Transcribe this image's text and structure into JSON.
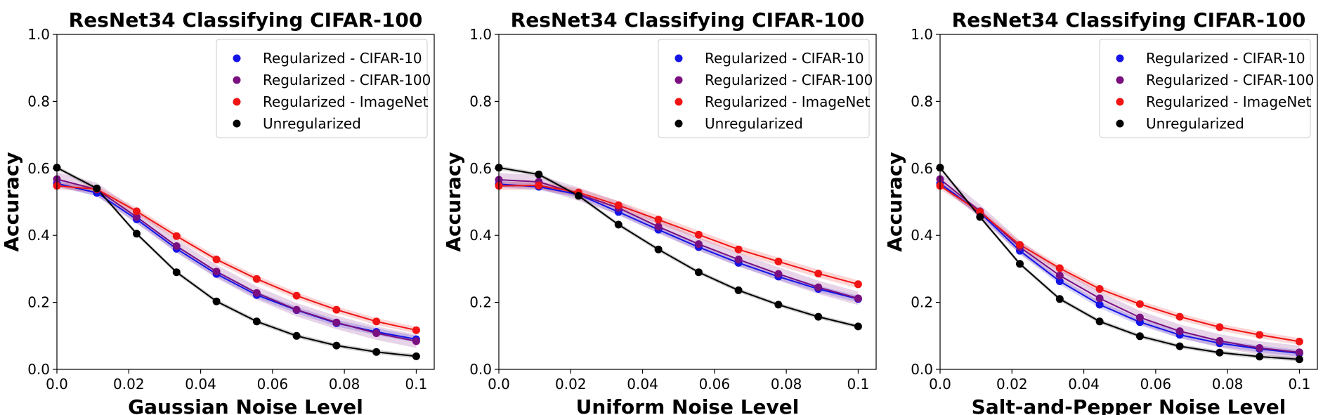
{
  "chart_data": [
    {
      "type": "line",
      "title": "ResNet34 Classifying CIFAR-100",
      "xlabel": "Gaussian Noise Level",
      "ylabel": "Accuracy",
      "xlim": [
        0,
        0.105
      ],
      "ylim": [
        0,
        1.0
      ],
      "xticks": [
        0.0,
        0.02,
        0.04,
        0.06,
        0.08,
        0.1
      ],
      "xtick_labels": [
        "0.0",
        "0.02",
        "0.04",
        "0.06",
        "0.08",
        "0.1"
      ],
      "yticks": [
        0.0,
        0.2,
        0.4,
        0.6,
        0.8,
        1.0
      ],
      "ytick_labels": [
        "0.0",
        "0.2",
        "0.4",
        "0.6",
        "0.8",
        "1.0"
      ],
      "legend_position": "top-right",
      "x": [
        0.0,
        0.0111,
        0.0222,
        0.0333,
        0.0444,
        0.0556,
        0.0667,
        0.0778,
        0.0889,
        0.1
      ],
      "series": [
        {
          "name": "Regularized - CIFAR-10",
          "color": "#1414e6",
          "values": [
            0.555,
            0.527,
            0.448,
            0.36,
            0.285,
            0.222,
            0.177,
            0.138,
            0.112,
            0.09
          ],
          "band": 0.01
        },
        {
          "name": "Regularized - CIFAR-100",
          "color": "#7a1080",
          "values": [
            0.568,
            0.537,
            0.455,
            0.368,
            0.292,
            0.228,
            0.178,
            0.14,
            0.108,
            0.084
          ],
          "band": 0.02
        },
        {
          "name": "Regularized - ImageNet",
          "color": "#f01414",
          "values": [
            0.548,
            0.538,
            0.472,
            0.398,
            0.328,
            0.27,
            0.22,
            0.178,
            0.143,
            0.117
          ],
          "band": 0.01
        },
        {
          "name": "Unregularized",
          "color": "#000000",
          "values": [
            0.602,
            0.54,
            0.405,
            0.29,
            0.203,
            0.143,
            0.1,
            0.071,
            0.052,
            0.039
          ],
          "band": 0.006
        }
      ]
    },
    {
      "type": "line",
      "title": "ResNet34 Classifying CIFAR-100",
      "xlabel": "Uniform Noise Level",
      "ylabel": "Accuracy",
      "xlim": [
        0,
        0.105
      ],
      "ylim": [
        0,
        1.0
      ],
      "xticks": [
        0.0,
        0.02,
        0.04,
        0.06,
        0.08,
        0.1
      ],
      "xtick_labels": [
        "0.0",
        "0.02",
        "0.04",
        "0.06",
        "0.08",
        "0.1"
      ],
      "yticks": [
        0.0,
        0.2,
        0.4,
        0.6,
        0.8,
        1.0
      ],
      "ytick_labels": [
        "0.0",
        "0.2",
        "0.4",
        "0.6",
        "0.8",
        "1.0"
      ],
      "legend_position": "top-right",
      "x": [
        0.0,
        0.0111,
        0.0222,
        0.0333,
        0.0444,
        0.0556,
        0.0667,
        0.0778,
        0.0889,
        0.1
      ],
      "series": [
        {
          "name": "Regularized - CIFAR-10",
          "color": "#1414e6",
          "values": [
            0.553,
            0.545,
            0.522,
            0.47,
            0.417,
            0.365,
            0.318,
            0.277,
            0.24,
            0.21
          ],
          "band": 0.01
        },
        {
          "name": "Regularized - CIFAR-100",
          "color": "#7a1080",
          "values": [
            0.566,
            0.56,
            0.523,
            0.482,
            0.426,
            0.374,
            0.328,
            0.285,
            0.245,
            0.212
          ],
          "band": 0.02
        },
        {
          "name": "Regularized - ImageNet",
          "color": "#f01414",
          "values": [
            0.548,
            0.549,
            0.528,
            0.49,
            0.447,
            0.402,
            0.358,
            0.322,
            0.286,
            0.254
          ],
          "band": 0.012
        },
        {
          "name": "Unregularized",
          "color": "#000000",
          "values": [
            0.602,
            0.582,
            0.518,
            0.432,
            0.358,
            0.29,
            0.236,
            0.193,
            0.157,
            0.128
          ],
          "band": 0.006
        }
      ]
    },
    {
      "type": "line",
      "title": "ResNet34 Classifying CIFAR-100",
      "xlabel": "Salt-and-Pepper Noise Level",
      "ylabel": "Accuracy",
      "xlim": [
        0,
        0.105
      ],
      "ylim": [
        0,
        1.0
      ],
      "xticks": [
        0.0,
        0.02,
        0.04,
        0.06,
        0.08,
        0.1
      ],
      "xtick_labels": [
        "0.0",
        "0.02",
        "0.04",
        "0.06",
        "0.08",
        "0.1"
      ],
      "yticks": [
        0.0,
        0.2,
        0.4,
        0.6,
        0.8,
        1.0
      ],
      "ytick_labels": [
        "0.0",
        "0.2",
        "0.4",
        "0.6",
        "0.8",
        "1.0"
      ],
      "legend_position": "top-right",
      "x": [
        0.0,
        0.0111,
        0.0222,
        0.0333,
        0.0444,
        0.0556,
        0.0667,
        0.0778,
        0.0889,
        0.1
      ],
      "series": [
        {
          "name": "Regularized - CIFAR-10",
          "color": "#1414e6",
          "values": [
            0.555,
            0.468,
            0.354,
            0.263,
            0.193,
            0.141,
            0.103,
            0.078,
            0.061,
            0.048
          ],
          "band": 0.01
        },
        {
          "name": "Regularized - CIFAR-100",
          "color": "#7a1080",
          "values": [
            0.568,
            0.472,
            0.365,
            0.28,
            0.212,
            0.155,
            0.114,
            0.085,
            0.064,
            0.051
          ],
          "band": 0.02
        },
        {
          "name": "Regularized - ImageNet",
          "color": "#f01414",
          "values": [
            0.548,
            0.47,
            0.372,
            0.302,
            0.24,
            0.195,
            0.157,
            0.126,
            0.103,
            0.083
          ],
          "band": 0.01
        },
        {
          "name": "Unregularized",
          "color": "#000000",
          "values": [
            0.602,
            0.455,
            0.315,
            0.21,
            0.143,
            0.099,
            0.069,
            0.05,
            0.038,
            0.03
          ],
          "band": 0.006
        }
      ]
    }
  ]
}
